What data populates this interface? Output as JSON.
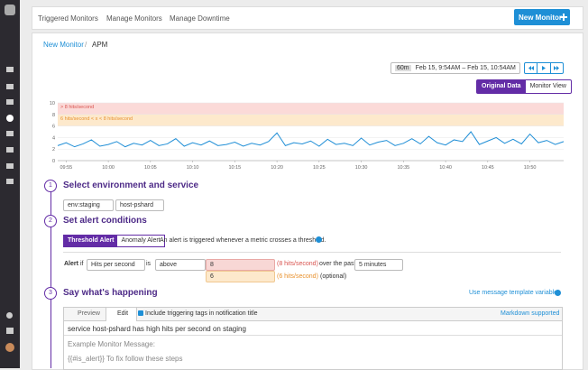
{
  "nav": {
    "tabs": [
      "Triggered Monitors",
      "Manage Monitors",
      "Manage Downtime"
    ],
    "new_button": "New Monitor"
  },
  "breadcrumb": {
    "parent": "New Monitor",
    "separator": "/",
    "current": "APM"
  },
  "time_picker": {
    "range": "60m",
    "label": "Feb 15, 9:54AM – Feb 15, 10:54AM"
  },
  "view_toggle": [
    "Original Data",
    "Monitor View"
  ],
  "chart_data": {
    "type": "line",
    "x": [
      "09:54",
      "09:55",
      "09:56",
      "09:57",
      "09:58",
      "09:59",
      "10:00",
      "10:01",
      "10:02",
      "10:03",
      "10:04",
      "10:05",
      "10:06",
      "10:07",
      "10:08",
      "10:09",
      "10:10",
      "10:11",
      "10:12",
      "10:13",
      "10:14",
      "10:15",
      "10:16",
      "10:17",
      "10:18",
      "10:19",
      "10:20",
      "10:21",
      "10:22",
      "10:23",
      "10:24",
      "10:25",
      "10:26",
      "10:27",
      "10:28",
      "10:29",
      "10:30",
      "10:31",
      "10:32",
      "10:33",
      "10:34",
      "10:35",
      "10:36",
      "10:37",
      "10:38",
      "10:39",
      "10:40",
      "10:41",
      "10:42",
      "10:43",
      "10:44",
      "10:45",
      "10:46",
      "10:47",
      "10:48",
      "10:49",
      "10:50",
      "10:51",
      "10:52",
      "10:53",
      "10:54"
    ],
    "series": [
      {
        "name": "Hits per second",
        "color": "#1f8ed6",
        "values": [
          2.6,
          3.1,
          2.4,
          2.9,
          3.6,
          2.5,
          2.8,
          3.3,
          2.4,
          3.0,
          2.7,
          3.5,
          2.6,
          2.9,
          3.8,
          2.5,
          3.1,
          2.7,
          3.4,
          2.6,
          2.8,
          3.2,
          2.5,
          3.0,
          2.7,
          3.3,
          4.8,
          2.6,
          3.1,
          2.9,
          3.4,
          2.5,
          3.7,
          2.8,
          3.0,
          2.6,
          3.9,
          2.7,
          3.2,
          3.5,
          2.6,
          3.0,
          3.8,
          2.9,
          4.2,
          3.1,
          2.7,
          3.6,
          3.3,
          5.0,
          2.8,
          3.4,
          4.0,
          3.0,
          3.7,
          2.9,
          4.6,
          3.1,
          3.5,
          2.8,
          3.3
        ]
      }
    ],
    "xticks": [
      "09:55",
      "10:00",
      "10:05",
      "10:10",
      "10:15",
      "10:20",
      "10:25",
      "10:30",
      "10:35",
      "10:40",
      "10:45",
      "10:50"
    ],
    "ylim": [
      0,
      10
    ],
    "yticks": [
      0,
      2,
      4,
      6,
      8,
      10
    ],
    "thresholds": [
      {
        "label": "> 8 hits/second",
        "from": 8,
        "to": 10,
        "color": "#fbdad8",
        "text_color": "#d9534f"
      },
      {
        "label": "6 hits/second < x < 8 hits/second",
        "from": 6,
        "to": 8,
        "color": "#fde9cc",
        "text_color": "#e8912d"
      }
    ]
  },
  "steps": [
    {
      "number": "1",
      "title": "Select environment and service",
      "fields": [
        "env:staging",
        "host-pshard"
      ]
    },
    {
      "number": "2",
      "title": "Set alert conditions"
    },
    {
      "number": "3",
      "title": "Say what's happening",
      "link": "Use message template variables"
    }
  ],
  "alert": {
    "tabs": [
      "Threshold Alert",
      "Anomaly Alert"
    ],
    "description": "An alert is triggered whenever a metric crosses a threshold.",
    "label": "Alert",
    "if": "if",
    "metric": "Hits per second",
    "is": "is",
    "comparator": "above",
    "alert_threshold": "8",
    "alert_note": "(8 hits/second)",
    "over": "over the past",
    "window": "5 minutes",
    "warning_threshold": "6",
    "warning_note": "(6 hits/second)",
    "optional": "(optional)"
  },
  "message": {
    "tabs": [
      "Preview",
      "Edit"
    ],
    "include_tags": "Include triggering tags in notification title",
    "markdown": "Markdown supported",
    "title": "service host-pshard has high hits per second on staging",
    "body": [
      "Example Monitor Message:",
      "{{#is_alert}} To fix follow these steps"
    ]
  }
}
